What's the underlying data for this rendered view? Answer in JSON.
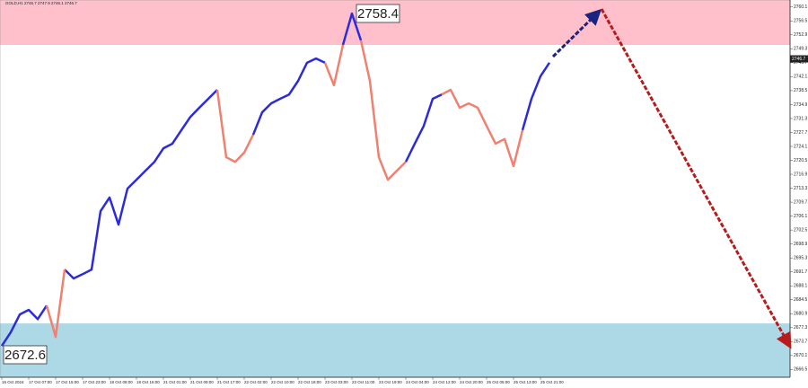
{
  "chart_data": {
    "type": "line",
    "title": "GOLD,H1 2746.7 2747.9 2746.1 2746.7",
    "categories": [
      "16 Oct 2024",
      null,
      null,
      "17 Oct 07:00",
      null,
      null,
      "17 Oct 15:00",
      null,
      null,
      "17 Oct 23:00",
      null,
      null,
      "18 Oct 08:00",
      null,
      null,
      "18 Oct 16:00",
      null,
      null,
      "21 Oct 01:00",
      null,
      null,
      "21 Oct 09:00",
      null,
      null,
      "21 Oct 17:00",
      null,
      null,
      "22 Oct 02:00",
      null,
      null,
      "22 Oct 10:00",
      null,
      null,
      "22 Oct 18:00",
      null,
      null,
      "23 Oct 03:00",
      null,
      null,
      "23 Oct 11:00",
      null,
      null,
      "23 Oct 19:00",
      null,
      null,
      "24 Oct 04:00",
      null,
      null,
      "24 Oct 12:00",
      null,
      null,
      "24 Oct 20:00",
      null,
      null,
      "25 Oct 05:00",
      null,
      null,
      "25 Oct 13:00",
      null,
      null,
      "25 Oct 21:00",
      null
    ],
    "series": [
      {
        "color": "#2b2bdc",
        "values": [
          2672.6,
          2676.1,
          2680.7,
          2681.9,
          2679.5,
          2683.0,
          null,
          2692.3,
          2690.0,
          2691.1,
          2692.3,
          2707.4,
          2710.9,
          2703.9,
          2713.2,
          2715.5,
          2717.8,
          2720.1,
          2723.6,
          2724.8,
          2728.3,
          2731.7,
          2734.1,
          2736.4,
          2738.7,
          null,
          null,
          null,
          2727.1,
          2732.9,
          2735.2,
          2736.4,
          2737.5,
          2741.0,
          2745.7,
          2746.8,
          2745.7,
          null,
          2750.3,
          2758.4,
          2751.5,
          null,
          null,
          null,
          null,
          2720.1,
          2724.8,
          2729.4,
          2736.4,
          2737.5,
          null,
          null,
          null,
          null,
          null,
          null,
          null,
          null,
          2728.3,
          2736.4,
          2742.2,
          2745.7
        ]
      },
      {
        "color": "#f08070",
        "values": [
          null,
          null,
          null,
          null,
          null,
          2683.0,
          2674.9,
          2692.3,
          null,
          null,
          null,
          null,
          null,
          null,
          null,
          null,
          null,
          null,
          null,
          null,
          null,
          null,
          null,
          null,
          2738.7,
          2721.3,
          2720.1,
          2722.5,
          2727.1,
          null,
          null,
          null,
          null,
          null,
          null,
          null,
          2745.7,
          2739.9,
          2750.3,
          null,
          2751.5,
          2741.0,
          2721.3,
          2715.5,
          2717.8,
          2720.1,
          null,
          null,
          null,
          2737.5,
          2738.7,
          2734.1,
          2735.2,
          2734.1,
          2729.4,
          2724.8,
          2726.0,
          2719.0,
          2728.3,
          null,
          null,
          null
        ]
      }
    ],
    "ylim": [
      2664.5,
      2761.9
    ],
    "yticks": [
      2666.5,
      2670.1,
      2673.7,
      2677.3,
      2680.9,
      2684.5,
      2688.1,
      2691.7,
      2695.3,
      2698.9,
      2702.5,
      2706.1,
      2709.7,
      2713.3,
      2716.9,
      2720.5,
      2724.1,
      2727.7,
      2731.3,
      2734.9,
      2738.5,
      2742.1,
      2745.7,
      2749.3,
      2752.9,
      2756.5,
      2760.1
    ],
    "zones": [
      {
        "from": 2750.3,
        "to": 2761.9,
        "color": "#ffc0cb"
      },
      {
        "from": 2664.5,
        "to": 2678.4,
        "color": "#add8e6"
      }
    ],
    "annotations": [
      {
        "text": "2758.4"
      },
      {
        "text": "2672.6"
      }
    ],
    "last_price": 2746.7
  }
}
